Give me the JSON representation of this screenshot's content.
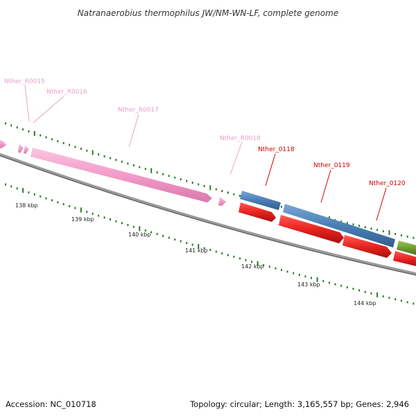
{
  "title": "Natranaerobius thermophilus JW/NM-WN-LF, complete genome",
  "footer": {
    "accession": "Accession: NC_010718",
    "summary": "Topology: circular; Length: 3,165,557 bp; Genes: 2,946"
  },
  "ticks": [
    "138 kbp",
    "139 kbp",
    "140 kbp",
    "141 kbp",
    "142 kbp",
    "143 kbp",
    "144 kbp"
  ],
  "genes": [
    {
      "label": "Nther_R0015",
      "type": "rna"
    },
    {
      "label": "Nther_R0016",
      "type": "rna"
    },
    {
      "label": "Nther_R0017",
      "type": "rna"
    },
    {
      "label": "Nther_R0018",
      "type": "rna"
    },
    {
      "label": "Nther_0118",
      "type": "cds"
    },
    {
      "label": "Nther_0119",
      "type": "cds"
    },
    {
      "label": "Nther_0120",
      "type": "cds"
    }
  ],
  "colors": {
    "rna": "#f39bc9",
    "rna_label": "#e8a0c8",
    "cds": "#e8231f",
    "cds_label": "#cc0000",
    "blue_feature": "#4a7fb5",
    "green_feature": "#6e9a2e",
    "backbone": "#808080",
    "ticks": "#2a7a2a"
  }
}
